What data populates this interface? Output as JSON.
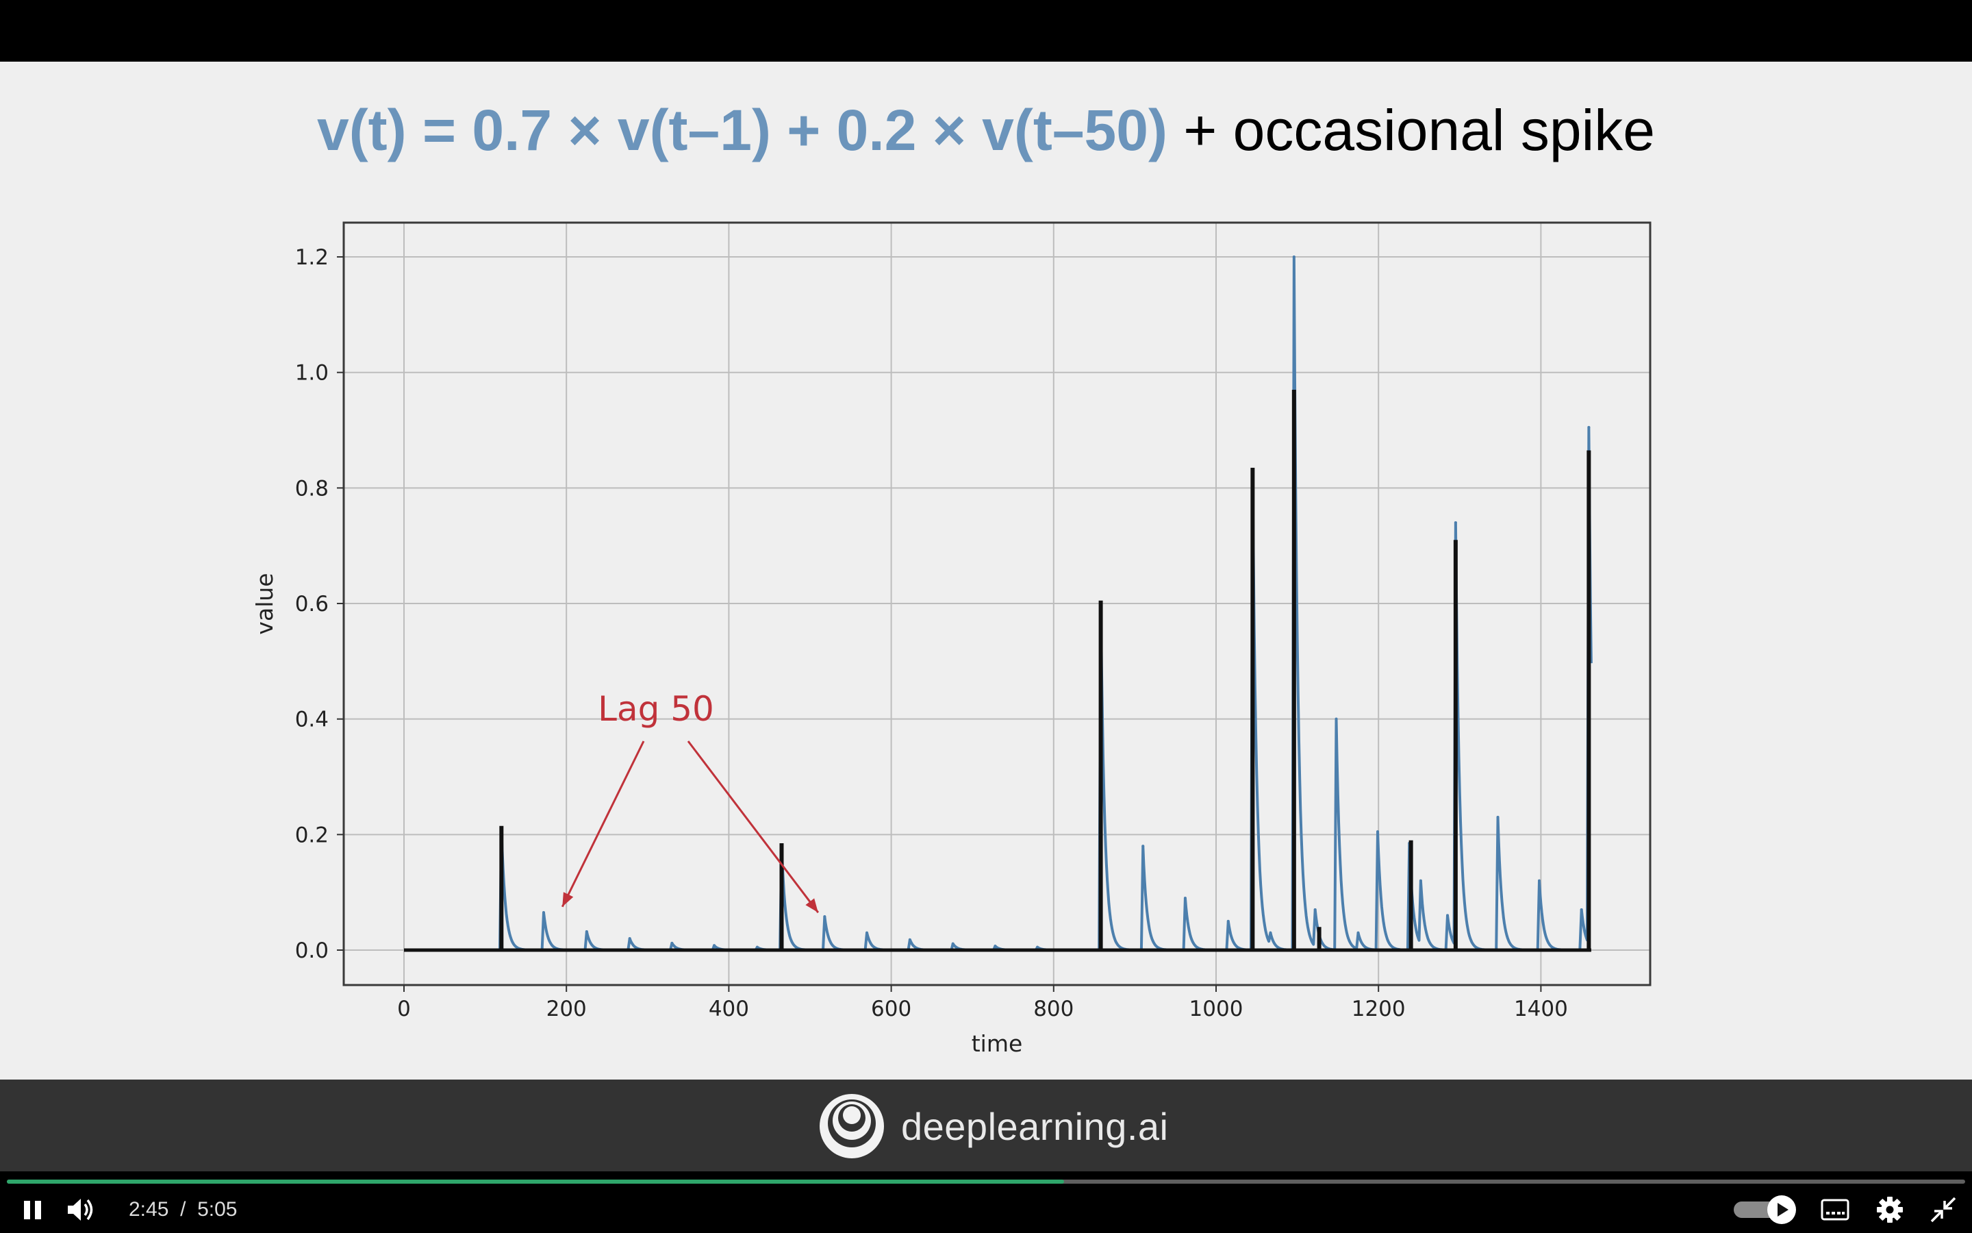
{
  "slide": {
    "title_equation": "v(t) = 0.7 × v(t–1) + 0.2 × v(t–50)",
    "title_rest": " + occasional spike"
  },
  "chart_data": {
    "type": "line",
    "title": "",
    "xlabel": "time",
    "ylabel": "value",
    "xlim": [
      -75,
      1530
    ],
    "ylim": [
      -0.06,
      1.26
    ],
    "x_ticks": [
      0,
      200,
      400,
      600,
      800,
      1000,
      1200,
      1400
    ],
    "y_ticks": [
      0.0,
      0.2,
      0.4,
      0.6,
      0.8,
      1.0,
      1.2
    ],
    "x_tick_labels": [
      "0",
      "200",
      "400",
      "600",
      "800",
      "1000",
      "1200",
      "1400"
    ],
    "y_tick_labels": [
      "0.0",
      "0.2",
      "0.4",
      "0.6",
      "0.8",
      "1.0",
      "1.2"
    ],
    "grid": true,
    "annotation": {
      "text": "Lag 50",
      "points_to_x": [
        195,
        510
      ],
      "points_to_y": [
        0.075,
        0.065
      ]
    },
    "series": [
      {
        "color": "#4c7fad",
        "peaks": [
          {
            "x": 120,
            "y": 0.21
          },
          {
            "x": 172,
            "y": 0.065
          },
          {
            "x": 225,
            "y": 0.032
          },
          {
            "x": 278,
            "y": 0.02
          },
          {
            "x": 330,
            "y": 0.012
          },
          {
            "x": 382,
            "y": 0.008
          },
          {
            "x": 435,
            "y": 0.005
          },
          {
            "x": 465,
            "y": 0.18
          },
          {
            "x": 518,
            "y": 0.058
          },
          {
            "x": 570,
            "y": 0.03
          },
          {
            "x": 623,
            "y": 0.018
          },
          {
            "x": 676,
            "y": 0.011
          },
          {
            "x": 728,
            "y": 0.007
          },
          {
            "x": 780,
            "y": 0.005
          },
          {
            "x": 858,
            "y": 0.6
          },
          {
            "x": 910,
            "y": 0.18
          },
          {
            "x": 962,
            "y": 0.09
          },
          {
            "x": 1015,
            "y": 0.05
          },
          {
            "x": 1045,
            "y": 0.83
          },
          {
            "x": 1067,
            "y": 0.03
          },
          {
            "x": 1096,
            "y": 1.2
          },
          {
            "x": 1122,
            "y": 0.07
          },
          {
            "x": 1148,
            "y": 0.4
          },
          {
            "x": 1175,
            "y": 0.03
          },
          {
            "x": 1199,
            "y": 0.205
          },
          {
            "x": 1238,
            "y": 0.185
          },
          {
            "x": 1252,
            "y": 0.12
          },
          {
            "x": 1285,
            "y": 0.06
          },
          {
            "x": 1295,
            "y": 0.74
          },
          {
            "x": 1347,
            "y": 0.23
          },
          {
            "x": 1398,
            "y": 0.12
          },
          {
            "x": 1450,
            "y": 0.07
          },
          {
            "x": 1459,
            "y": 0.905
          }
        ]
      },
      {
        "color": "#111111",
        "spikes": [
          {
            "x": 120,
            "y": 0.215
          },
          {
            "x": 465,
            "y": 0.185
          },
          {
            "x": 858,
            "y": 0.605
          },
          {
            "x": 1045,
            "y": 0.835
          },
          {
            "x": 1096,
            "y": 0.97
          },
          {
            "x": 1127,
            "y": 0.04
          },
          {
            "x": 1240,
            "y": 0.19
          },
          {
            "x": 1295,
            "y": 0.71
          },
          {
            "x": 1459,
            "y": 0.865
          }
        ]
      }
    ]
  },
  "footer": {
    "brand": "deeplearning.ai"
  },
  "player": {
    "current_time": "2:45",
    "time_separator": "/",
    "duration": "5:05",
    "progress": 0.54
  }
}
